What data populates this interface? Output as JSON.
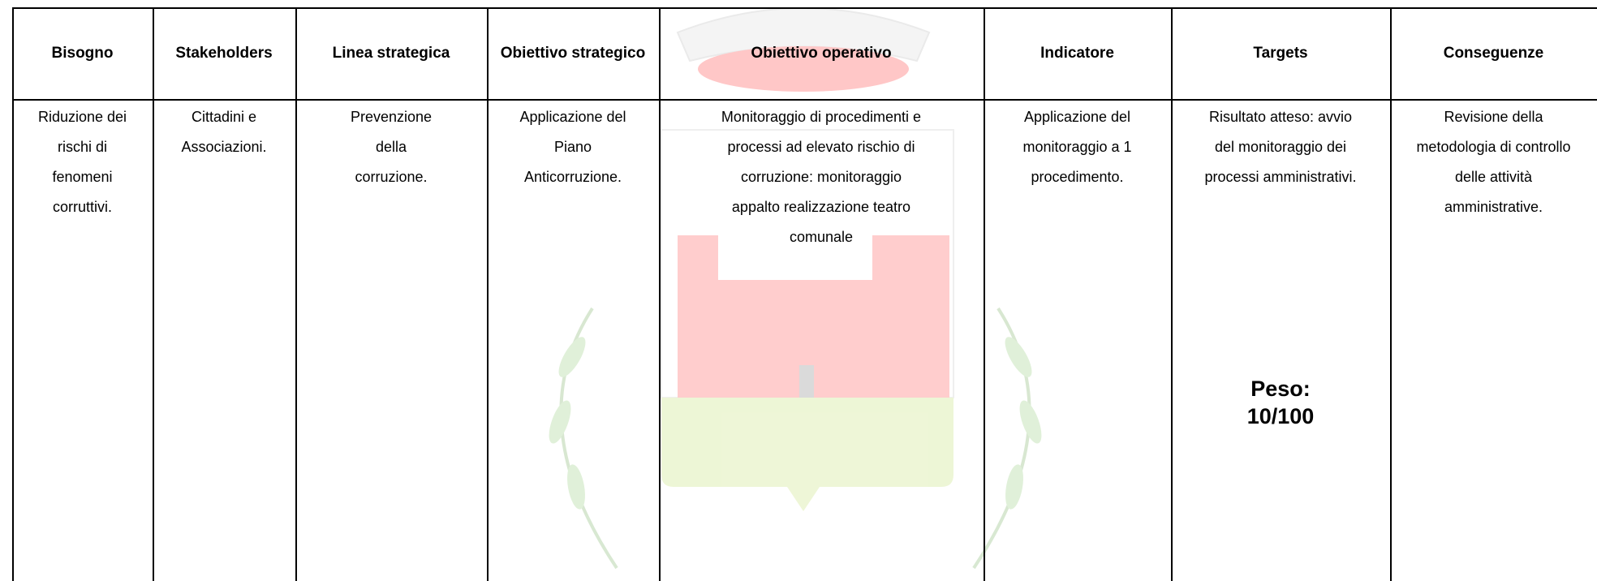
{
  "table": {
    "headers": [
      "Bisogno",
      "Stakeholders",
      "Linea strategica",
      "Obiettivo strategico",
      "Obiettivo operativo",
      "Indicatore",
      "Targets",
      "Conseguenze"
    ],
    "body": [
      {
        "lines": [
          "Riduzione dei",
          "rischi di",
          "fenomeni",
          "corruttivi."
        ]
      },
      {
        "lines": [
          "Cittadini e",
          "Associazioni."
        ]
      },
      {
        "lines": [
          "Prevenzione",
          "della",
          "corruzione."
        ]
      },
      {
        "lines": [
          "Applicazione del",
          "Piano",
          "Anticorruzione."
        ]
      },
      {
        "lines": [
          "Monitoraggio di procedimenti e",
          "processi ad elevato rischio di",
          "corruzione: monitoraggio",
          "appalto realizzazione teatro",
          "comunale"
        ]
      },
      {
        "lines": [
          "Applicazione del",
          "monitoraggio a 1",
          "procedimento."
        ]
      },
      {
        "lines": [
          "Risultato atteso: avvio",
          "del monitoraggio dei",
          "processi amministrativi."
        ]
      },
      {
        "lines": [
          "Revisione della",
          "metodologia di controllo",
          "delle attività",
          "amministrative."
        ]
      }
    ],
    "weight": [
      "Peso:",
      "10/100"
    ]
  }
}
